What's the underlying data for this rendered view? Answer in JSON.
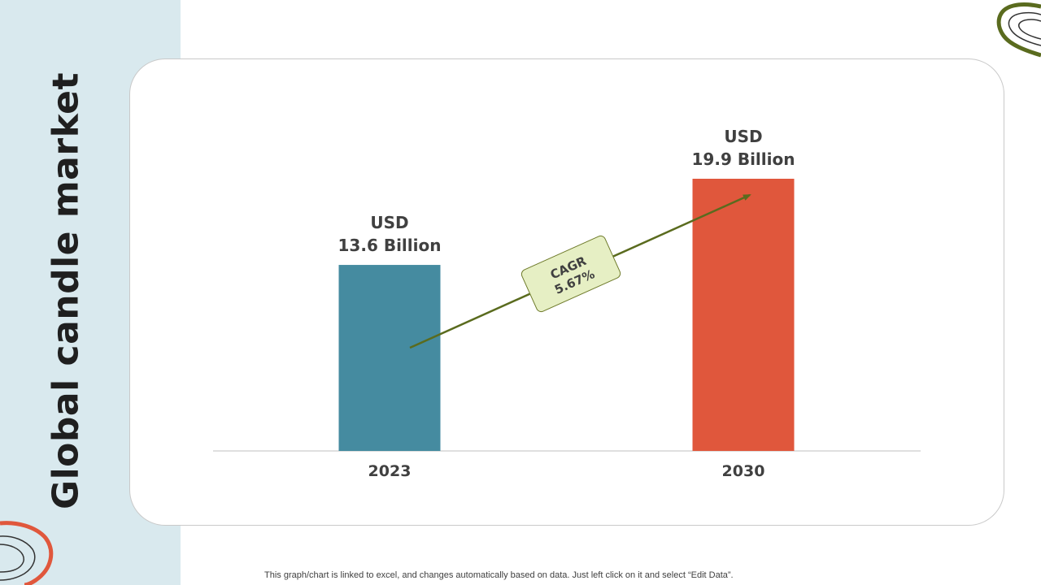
{
  "slide": {
    "title": "Global candle market",
    "footnote": "This graph/chart is linked to excel,  and changes automatically based on data. Just left click on it and select “Edit Data”."
  },
  "chart_data": {
    "type": "bar",
    "title": "",
    "xlabel": "",
    "ylabel": "",
    "categories": [
      "2023",
      "2030"
    ],
    "values": [
      13.6,
      19.9
    ],
    "value_labels": [
      {
        "line1": "USD",
        "line2": "13.6 Billion"
      },
      {
        "line1": "USD",
        "line2": "19.9 Billion"
      }
    ],
    "colors": [
      "#458ba0",
      "#e0573c"
    ],
    "ylim": [
      0,
      19.9
    ],
    "grid": false,
    "legend": "none",
    "annotation": {
      "line1": "CAGR",
      "line2": "5.67%"
    }
  },
  "colors": {
    "arrow": "#5a6b1e",
    "cagr_box_fill": "#e6efc4",
    "cagr_box_stroke": "#6e7a2a",
    "deco_green": "#5a6b1e",
    "deco_orange": "#e0573c",
    "side_panel": "#d9e9ee"
  }
}
